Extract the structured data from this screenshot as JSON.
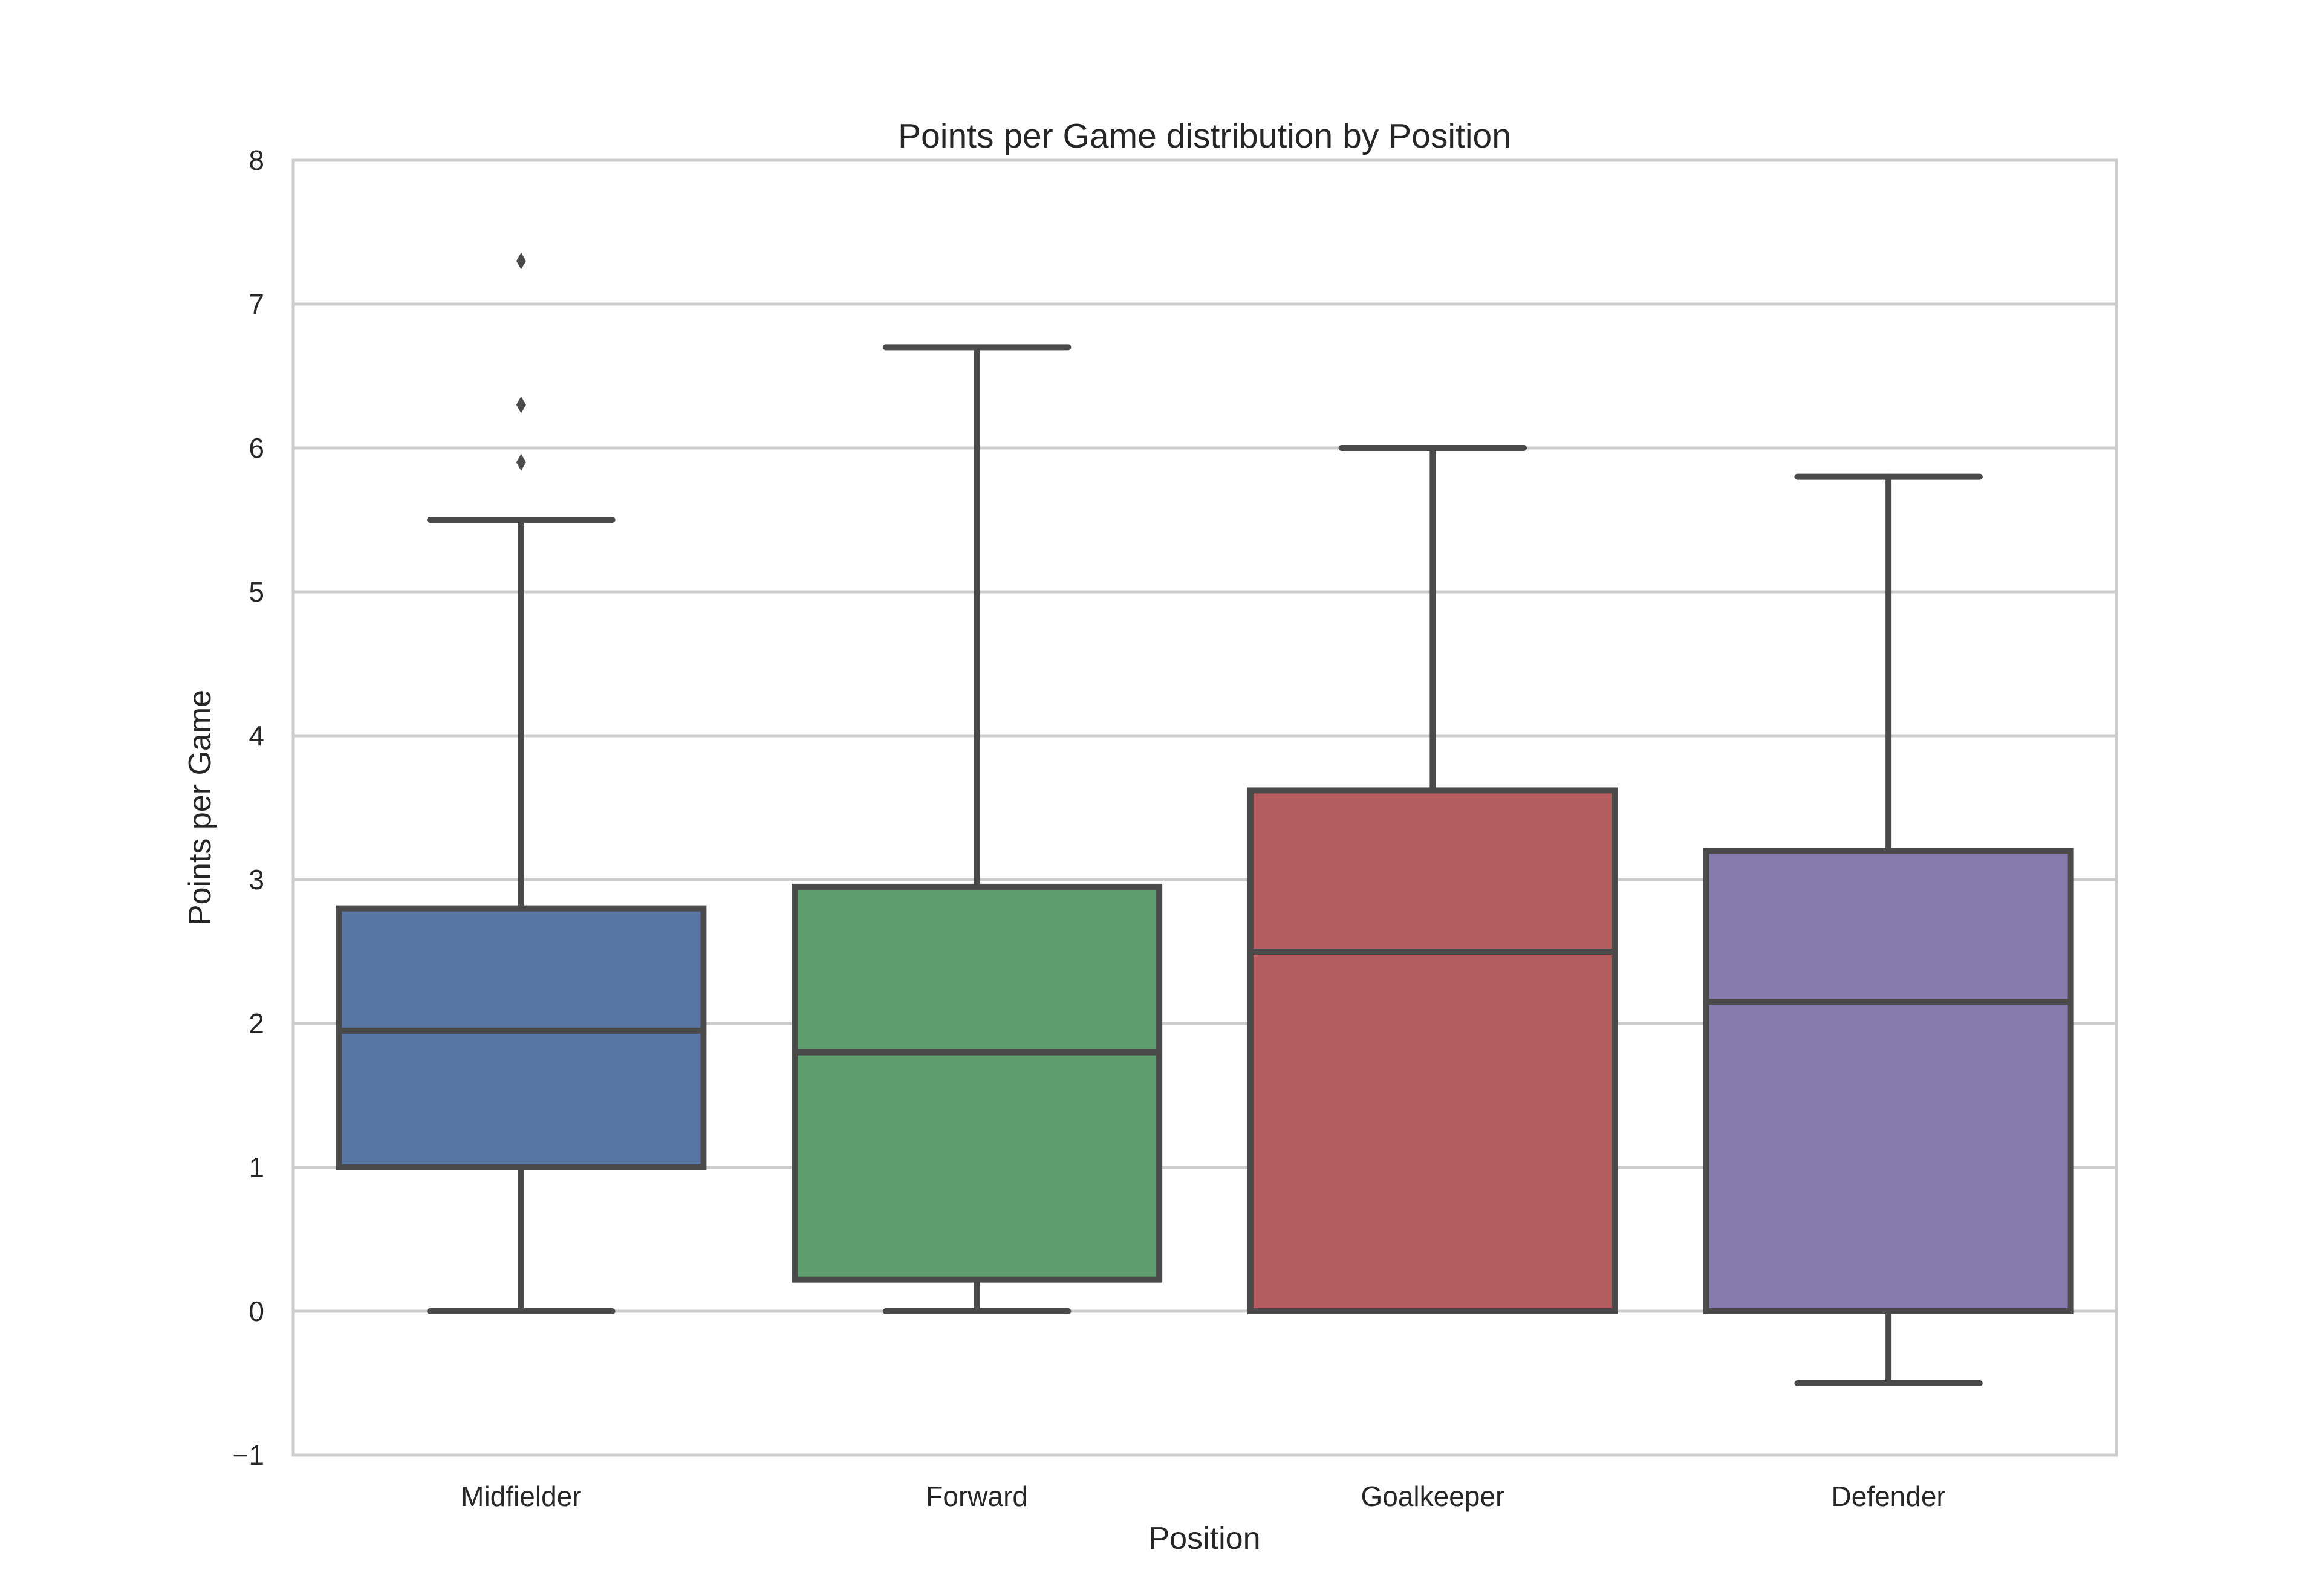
{
  "chart_data": {
    "type": "box",
    "title": "Points per Game distribution by Position",
    "xlabel": "Position",
    "ylabel": "Points per Game",
    "ylim": [
      -1,
      8
    ],
    "yticks": [
      -1,
      0,
      1,
      2,
      3,
      4,
      5,
      6,
      7,
      8
    ],
    "ytick_labels": [
      "−1",
      "0",
      "1",
      "2",
      "3",
      "4",
      "5",
      "6",
      "7",
      "8"
    ],
    "grid": "horizontal",
    "categories": [
      "Midfielder",
      "Forward",
      "Goalkeeper",
      "Defender"
    ],
    "boxes": [
      {
        "category": "Midfielder",
        "whisker_low": 0.0,
        "q1": 1.0,
        "median": 1.95,
        "q3": 2.8,
        "whisker_high": 5.5,
        "outliers": [
          5.9,
          6.3,
          7.3
        ],
        "color": "#5875a4"
      },
      {
        "category": "Forward",
        "whisker_low": 0.0,
        "q1": 0.22,
        "median": 1.8,
        "q3": 2.95,
        "whisker_high": 6.7,
        "outliers": [],
        "color": "#5f9e6e"
      },
      {
        "category": "Goalkeeper",
        "whisker_low": 0.0,
        "q1": 0.0,
        "median": 2.5,
        "q3": 3.62,
        "whisker_high": 6.0,
        "outliers": [],
        "color": "#b55d60"
      },
      {
        "category": "Defender",
        "whisker_low": -0.5,
        "q1": 0.0,
        "median": 2.15,
        "q3": 3.2,
        "whisker_high": 5.8,
        "outliers": [],
        "color": "#857aab"
      }
    ]
  }
}
